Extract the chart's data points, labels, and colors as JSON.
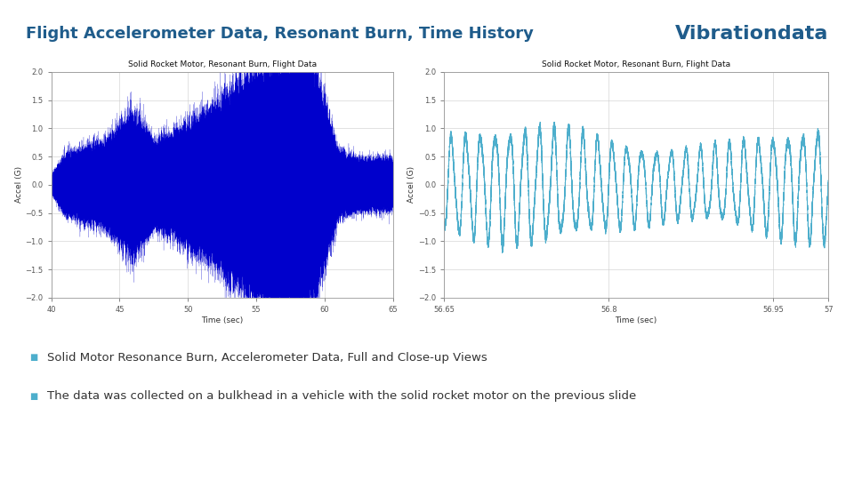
{
  "title": "Flight Accelerometer Data, Resonant Burn, Time History",
  "brand": "Vibrationdata",
  "title_color": "#1F5C8B",
  "brand_color": "#1F5C8B",
  "bg_color": "#FFFFFF",
  "plot_bg": "#FFFFFF",
  "divider_color": "#2196A6",
  "plot1_title": "Solid Rocket Motor, Resonant Burn, Flight Data",
  "plot2_title": "Solid Rocket Motor, Resonant Burn, Flight Data",
  "xlabel": "Time (sec)",
  "ylabel": "Accel (G)",
  "plot1_xlim": [
    40,
    65
  ],
  "plot1_xticks": [
    40,
    45,
    50,
    55,
    60,
    65
  ],
  "plot1_ylim": [
    -2,
    2
  ],
  "plot1_yticks": [
    -2,
    -1.5,
    -1,
    -0.5,
    0,
    0.5,
    1,
    1.5,
    2
  ],
  "plot2_xlim": [
    56.65,
    57
  ],
  "plot2_xticks": [
    56.65,
    56.8,
    56.95,
    57
  ],
  "plot2_ylim": [
    -2,
    2
  ],
  "plot2_yticks": [
    -2,
    -1.5,
    -1,
    -0.5,
    0,
    0.5,
    1,
    1.5,
    2
  ],
  "bullet1": "Solid Motor Resonance Burn, Accelerometer Data, Full and Close-up Views",
  "bullet2": "The data was collected on a bulkhead in a vehicle with the solid rocket motor on the previous slide",
  "signal_color_left": "#0000CC",
  "signal_color_right": "#4DAECC",
  "bullet_square_color": "#4DAECC",
  "text_color": "#333333",
  "tick_color": "#555555",
  "grid_color": "#CCCCCC",
  "spine_color": "#999999",
  "title_fs": 13,
  "brand_fs": 16,
  "plot_title_fs": 6.5,
  "tick_fs": 6,
  "label_fs": 6.5,
  "bullet_fs": 9.5
}
